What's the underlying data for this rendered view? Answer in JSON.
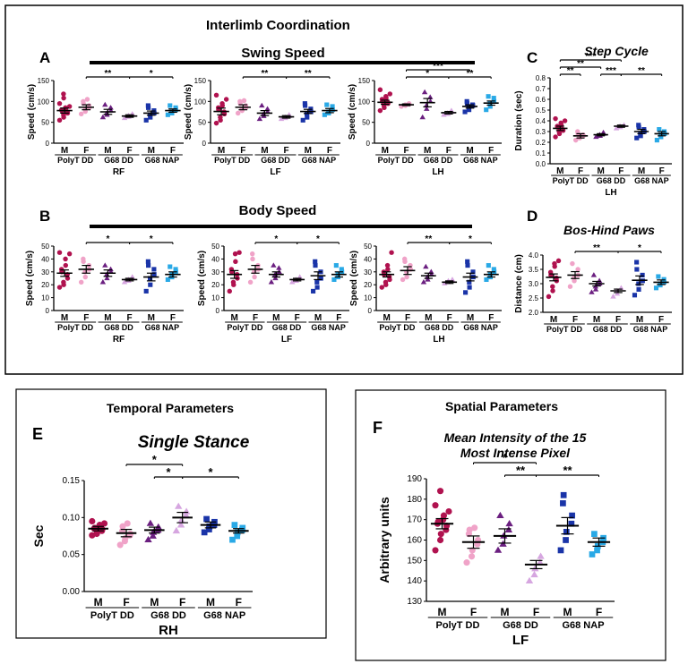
{
  "colors": {
    "polyt_m": "#b0124f",
    "polyt_f": "#f0a3c8",
    "g68dd_m": "#6b1f80",
    "g68dd_f": "#d6a6e0",
    "g68nap_m": "#1a34a8",
    "g68nap_f": "#29a9e6"
  },
  "top_section": {
    "title": "Interlimb Coordination",
    "swing_title": "Swing Speed",
    "body_title": "Body Speed"
  },
  "bottom_left": {
    "title": "Temporal Parameters"
  },
  "bottom_right": {
    "title": "Spatial Parameters"
  },
  "x_tick_labels": [
    "M",
    "F",
    "M",
    "F",
    "M",
    "F"
  ],
  "group_labels": [
    "PolyT DD",
    "G68 DD",
    "G68 NAP"
  ],
  "chart_data": [
    {
      "id": "A-RF",
      "panel": "A",
      "type": "scatter",
      "xlabel": "RF",
      "ylabel": "Speed (cm/s)",
      "ylim": [
        0,
        150
      ],
      "yticks": [
        "0",
        "50",
        "100",
        "150"
      ],
      "means": [
        78,
        86,
        75,
        65,
        72,
        78
      ],
      "sems": [
        6,
        6,
        6,
        3,
        5,
        4
      ],
      "points": [
        [
          55,
          62,
          68,
          72,
          75,
          78,
          80,
          82,
          85,
          88,
          95,
          108,
          118
        ],
        [
          70,
          76,
          82,
          85,
          90,
          95,
          100,
          105
        ],
        [
          62,
          68,
          72,
          78,
          85,
          92
        ],
        [
          60,
          63,
          66,
          68,
          70
        ],
        [
          55,
          62,
          68,
          72,
          78,
          85,
          90
        ],
        [
          68,
          72,
          75,
          80,
          85,
          90
        ]
      ],
      "annotations": [
        {
          "from": 1,
          "to": 3,
          "label": "**"
        },
        {
          "from": 3,
          "to": 5,
          "label": "*"
        }
      ]
    },
    {
      "id": "A-LF",
      "type": "scatter",
      "xlabel": "LF",
      "ylabel": "Speed (cm/s)",
      "ylim": [
        0,
        150
      ],
      "yticks": [
        "0",
        "50",
        "100",
        "150"
      ],
      "means": [
        76,
        86,
        72,
        63,
        76,
        78
      ],
      "sems": [
        8,
        6,
        6,
        3,
        5,
        5
      ],
      "points": [
        [
          48,
          55,
          62,
          70,
          75,
          80,
          85,
          90,
          95,
          105,
          115
        ],
        [
          72,
          78,
          82,
          85,
          90,
          95,
          100,
          102
        ],
        [
          58,
          65,
          70,
          75,
          82,
          90
        ],
        [
          58,
          60,
          62,
          65,
          68
        ],
        [
          55,
          62,
          70,
          75,
          82,
          90,
          95
        ],
        [
          68,
          72,
          75,
          80,
          88,
          92
        ]
      ],
      "annotations": [
        {
          "from": 1,
          "to": 3,
          "label": "**"
        },
        {
          "from": 3,
          "to": 5,
          "label": "**"
        }
      ]
    },
    {
      "id": "A-LH",
      "type": "scatter",
      "xlabel": "LH",
      "ylabel": "Speed (cm/s)",
      "ylim": [
        0,
        150
      ],
      "yticks": [
        "0",
        "50",
        "100",
        "150"
      ],
      "means": [
        98,
        92,
        97,
        73,
        88,
        96
      ],
      "sems": [
        5,
        2,
        10,
        3,
        4,
        5
      ],
      "points": [
        [
          78,
          85,
          90,
          95,
          98,
          100,
          105,
          108,
          112,
          118,
          128
        ],
        [
          88,
          90,
          92,
          93,
          95
        ],
        [
          62,
          82,
          90,
          100,
          110,
          122
        ],
        [
          68,
          70,
          72,
          75,
          78
        ],
        [
          75,
          80,
          85,
          90,
          92,
          95,
          100
        ],
        [
          80,
          88,
          95,
          100,
          108,
          112
        ]
      ],
      "annotations": [
        {
          "from": 1,
          "to": 3,
          "label": "*"
        },
        {
          "from": 1,
          "to": 4,
          "label": "***"
        },
        {
          "from": 3,
          "to": 5,
          "label": "**"
        }
      ]
    },
    {
      "id": "C",
      "panel": "C",
      "title": "Step Cycle",
      "type": "scatter",
      "xlabel": "LH",
      "ylabel": "Duration (sec)",
      "ylim": [
        0,
        0.8
      ],
      "yticks": [
        "0.0",
        "0.1",
        "0.2",
        "0.3",
        "0.4",
        "0.5",
        "0.6",
        "0.7",
        "0.8"
      ],
      "means": [
        0.33,
        0.26,
        0.27,
        0.35,
        0.3,
        0.28
      ],
      "sems": [
        0.02,
        0.02,
        0.01,
        0.01,
        0.02,
        0.02
      ],
      "points": [
        [
          0.25,
          0.28,
          0.3,
          0.31,
          0.32,
          0.34,
          0.35,
          0.36,
          0.38,
          0.4,
          0.42
        ],
        [
          0.22,
          0.24,
          0.25,
          0.26,
          0.27,
          0.28,
          0.3
        ],
        [
          0.25,
          0.26,
          0.27,
          0.28,
          0.29
        ],
        [
          0.33,
          0.34,
          0.35,
          0.36
        ],
        [
          0.24,
          0.26,
          0.28,
          0.3,
          0.32,
          0.34,
          0.36
        ],
        [
          0.22,
          0.25,
          0.27,
          0.28,
          0.3,
          0.32
        ]
      ],
      "annotations": [
        {
          "from": 0,
          "to": 1,
          "label": "**"
        },
        {
          "from": 0,
          "to": 2,
          "label": "**"
        },
        {
          "from": 0,
          "to": 3,
          "label": "***"
        },
        {
          "from": 2,
          "to": 3,
          "label": "***"
        },
        {
          "from": 3,
          "to": 5,
          "label": "**"
        }
      ]
    },
    {
      "id": "B-RF",
      "panel": "B",
      "type": "scatter",
      "xlabel": "RF",
      "ylabel": "Speed (cm/s)",
      "ylim": [
        0,
        50
      ],
      "yticks": [
        "0",
        "10",
        "20",
        "30",
        "40",
        "50"
      ],
      "means": [
        29,
        32,
        29,
        24,
        26,
        28
      ],
      "sems": [
        2.5,
        3,
        2.5,
        1,
        3,
        2
      ],
      "points": [
        [
          18,
          20,
          22,
          25,
          28,
          30,
          32,
          35,
          40,
          44,
          45
        ],
        [
          22,
          26,
          30,
          32,
          35,
          38,
          40
        ],
        [
          22,
          25,
          28,
          30,
          32,
          35
        ],
        [
          22,
          23,
          24,
          25,
          26
        ],
        [
          15,
          20,
          25,
          28,
          32,
          35,
          38
        ],
        [
          24,
          26,
          28,
          30,
          32,
          34
        ]
      ],
      "annotations": [
        {
          "from": 1,
          "to": 3,
          "label": "*"
        },
        {
          "from": 3,
          "to": 5,
          "label": "*"
        }
      ]
    },
    {
      "id": "B-LF",
      "type": "scatter",
      "xlabel": "LF",
      "ylabel": "Speed (cm/s)",
      "ylim": [
        0,
        50
      ],
      "yticks": [
        "0",
        "10",
        "20",
        "30",
        "40",
        "50"
      ],
      "means": [
        28,
        32,
        28,
        24,
        27,
        28
      ],
      "sems": [
        3,
        3,
        2,
        1,
        3,
        2
      ],
      "points": [
        [
          15,
          20,
          22,
          25,
          28,
          30,
          32,
          38,
          44,
          45
        ],
        [
          22,
          26,
          30,
          32,
          35,
          40,
          44
        ],
        [
          22,
          25,
          28,
          30,
          33,
          35
        ],
        [
          22,
          23,
          24,
          25,
          26
        ],
        [
          15,
          18,
          22,
          25,
          30,
          35,
          38
        ],
        [
          24,
          26,
          28,
          30,
          32,
          35
        ]
      ],
      "annotations": [
        {
          "from": 1,
          "to": 3,
          "label": "*"
        },
        {
          "from": 3,
          "to": 5,
          "label": "*"
        }
      ]
    },
    {
      "id": "B-LH",
      "type": "scatter",
      "xlabel": "LH",
      "ylabel": "Speed (cm/s)",
      "ylim": [
        0,
        50
      ],
      "yticks": [
        "0",
        "10",
        "20",
        "30",
        "40",
        "50"
      ],
      "means": [
        28,
        31,
        27,
        22,
        26,
        28
      ],
      "sems": [
        2,
        3,
        2,
        1,
        3,
        2
      ],
      "points": [
        [
          18,
          20,
          22,
          24,
          26,
          28,
          30,
          32,
          35,
          45
        ],
        [
          24,
          26,
          30,
          32,
          35,
          38,
          40
        ],
        [
          22,
          24,
          26,
          28,
          30,
          34
        ],
        [
          21,
          22,
          23,
          24
        ],
        [
          14,
          18,
          22,
          26,
          30,
          35,
          38
        ],
        [
          24,
          26,
          28,
          30,
          32,
          35
        ]
      ],
      "annotations": [
        {
          "from": 1,
          "to": 3,
          "label": "**"
        },
        {
          "from": 3,
          "to": 5,
          "label": "*"
        }
      ]
    },
    {
      "id": "D",
      "panel": "D",
      "title": "Bos-Hind Paws",
      "type": "scatter",
      "xlabel": "",
      "ylabel": "Distance (cm)",
      "ylim": [
        2.0,
        4.0
      ],
      "yticks": [
        "2.0",
        "2.5",
        "3.0",
        "3.5",
        "4.0"
      ],
      "means": [
        3.22,
        3.3,
        3.0,
        2.75,
        3.12,
        3.05
      ],
      "sems": [
        0.12,
        0.12,
        0.08,
        0.06,
        0.15,
        0.08
      ],
      "points": [
        [
          2.55,
          2.75,
          2.9,
          3.1,
          3.2,
          3.3,
          3.4,
          3.6,
          3.7,
          3.8
        ],
        [
          2.9,
          3.1,
          3.2,
          3.3,
          3.5,
          3.7
        ],
        [
          2.7,
          2.8,
          2.9,
          3.0,
          3.1,
          3.3
        ],
        [
          2.55,
          2.65,
          2.75,
          2.85
        ],
        [
          2.6,
          2.8,
          3.0,
          3.1,
          3.3,
          3.5,
          3.75
        ],
        [
          2.85,
          2.95,
          3.0,
          3.05,
          3.15,
          3.25
        ]
      ],
      "annotations": [
        {
          "from": 1,
          "to": 3,
          "label": "**"
        },
        {
          "from": 3,
          "to": 5,
          "label": "*"
        }
      ]
    },
    {
      "id": "E",
      "panel": "E",
      "title": "Single Stance",
      "type": "scatter",
      "xlabel": "RH",
      "ylabel": "Sec",
      "ylim": [
        0,
        0.15
      ],
      "yticks": [
        "0.00",
        "0.05",
        "0.10",
        "0.15"
      ],
      "means": [
        0.085,
        0.079,
        0.083,
        0.1,
        0.09,
        0.082
      ],
      "sems": [
        0.003,
        0.005,
        0.004,
        0.007,
        0.004,
        0.003
      ],
      "points": [
        [
          0.076,
          0.078,
          0.08,
          0.082,
          0.084,
          0.085,
          0.086,
          0.088,
          0.09,
          0.092,
          0.095
        ],
        [
          0.063,
          0.068,
          0.072,
          0.076,
          0.078,
          0.082,
          0.088,
          0.092
        ],
        [
          0.07,
          0.075,
          0.08,
          0.083,
          0.087,
          0.092
        ],
        [
          0.082,
          0.09,
          0.096,
          0.103,
          0.108,
          0.115
        ],
        [
          0.08,
          0.084,
          0.088,
          0.09,
          0.094,
          0.098
        ],
        [
          0.07,
          0.075,
          0.08,
          0.083,
          0.086,
          0.09
        ]
      ],
      "annotations": [
        {
          "from": 2,
          "to": 3,
          "label": "*"
        },
        {
          "from": 1,
          "to": 3,
          "label": "*"
        },
        {
          "from": 3,
          "to": 5,
          "label": "*"
        }
      ]
    },
    {
      "id": "F",
      "panel": "F",
      "title": "Mean Intensity of the 15 Most Intense Pixel",
      "type": "scatter",
      "xlabel": "LF",
      "ylabel": "Arbitrary units",
      "ylim": [
        130,
        190
      ],
      "yticks": [
        "130",
        "140",
        "150",
        "160",
        "170",
        "180",
        "190"
      ],
      "means": [
        168,
        159,
        162,
        148,
        167,
        159
      ],
      "sems": [
        2.5,
        3,
        3.5,
        2,
        4,
        2
      ],
      "points": [
        [
          155,
          160,
          163,
          165,
          167,
          168,
          169,
          170,
          172,
          174,
          177,
          184
        ],
        [
          149,
          152,
          155,
          158,
          160,
          163,
          165,
          166
        ],
        [
          155,
          158,
          162,
          165,
          168,
          172
        ],
        [
          140,
          143,
          146,
          149,
          152
        ],
        [
          155,
          160,
          164,
          168,
          172,
          178,
          182
        ],
        [
          153,
          155,
          157,
          159,
          161,
          163
        ]
      ],
      "annotations": [
        {
          "from": 2,
          "to": 3,
          "label": "**"
        },
        {
          "from": 1,
          "to": 3,
          "label": "*"
        },
        {
          "from": 3,
          "to": 5,
          "label": "**"
        }
      ]
    }
  ]
}
